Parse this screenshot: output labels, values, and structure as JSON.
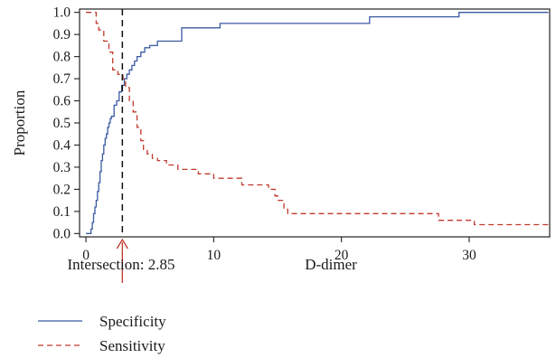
{
  "chart_data": {
    "type": "line",
    "xlabel": "D-dimer",
    "ylabel": "Proportion",
    "xlim": [
      -0.5,
      36.3
    ],
    "ylim": [
      -0.015,
      1.015
    ],
    "x_ticks": [
      0,
      10,
      20,
      30
    ],
    "y_ticks": [
      0.0,
      0.1,
      0.2,
      0.3,
      0.4,
      0.5,
      0.6,
      0.7,
      0.8,
      0.9,
      1.0
    ],
    "grid": false,
    "legend_position": "bottom-left, below plot",
    "intersection": {
      "x": 2.85,
      "label": "Intersection: 2.85",
      "line_color": "#111111",
      "arrow_color": "#c0392b"
    },
    "series": [
      {
        "name": "Specificity",
        "style": "solid",
        "color": "#3b5aa3",
        "step": true,
        "x": [
          0,
          0.4,
          0.5,
          0.6,
          0.7,
          0.8,
          0.9,
          1.0,
          1.1,
          1.2,
          1.3,
          1.4,
          1.5,
          1.6,
          1.7,
          1.8,
          1.9,
          2.0,
          2.2,
          2.4,
          2.6,
          2.8,
          3.0,
          3.2,
          3.4,
          3.6,
          3.8,
          4.0,
          4.3,
          4.6,
          5.0,
          5.6,
          7.5,
          10.5,
          22.2,
          29.2,
          36.2
        ],
        "y": [
          0.0,
          0.02,
          0.05,
          0.09,
          0.12,
          0.15,
          0.19,
          0.23,
          0.28,
          0.33,
          0.36,
          0.4,
          0.43,
          0.45,
          0.48,
          0.5,
          0.52,
          0.53,
          0.58,
          0.6,
          0.64,
          0.67,
          0.7,
          0.72,
          0.74,
          0.76,
          0.78,
          0.8,
          0.82,
          0.84,
          0.85,
          0.87,
          0.93,
          0.95,
          0.98,
          1.0,
          1.0
        ]
      },
      {
        "name": "Sensitivity",
        "style": "dashed",
        "color": "#c0392b",
        "step": true,
        "x": [
          0,
          0.8,
          1.0,
          1.4,
          1.8,
          2.1,
          2.5,
          2.9,
          3.1,
          3.4,
          3.7,
          4.0,
          4.3,
          4.5,
          4.8,
          5.2,
          5.6,
          6.3,
          7.2,
          8.8,
          10.0,
          12.2,
          14.3,
          14.8,
          15.0,
          15.5,
          15.8,
          27.6,
          30.4,
          36.2
        ],
        "y": [
          1.0,
          0.95,
          0.92,
          0.87,
          0.82,
          0.74,
          0.72,
          0.7,
          0.66,
          0.6,
          0.55,
          0.48,
          0.42,
          0.38,
          0.36,
          0.34,
          0.33,
          0.31,
          0.29,
          0.27,
          0.25,
          0.22,
          0.2,
          0.17,
          0.15,
          0.11,
          0.09,
          0.06,
          0.04,
          0.03
        ]
      }
    ]
  }
}
